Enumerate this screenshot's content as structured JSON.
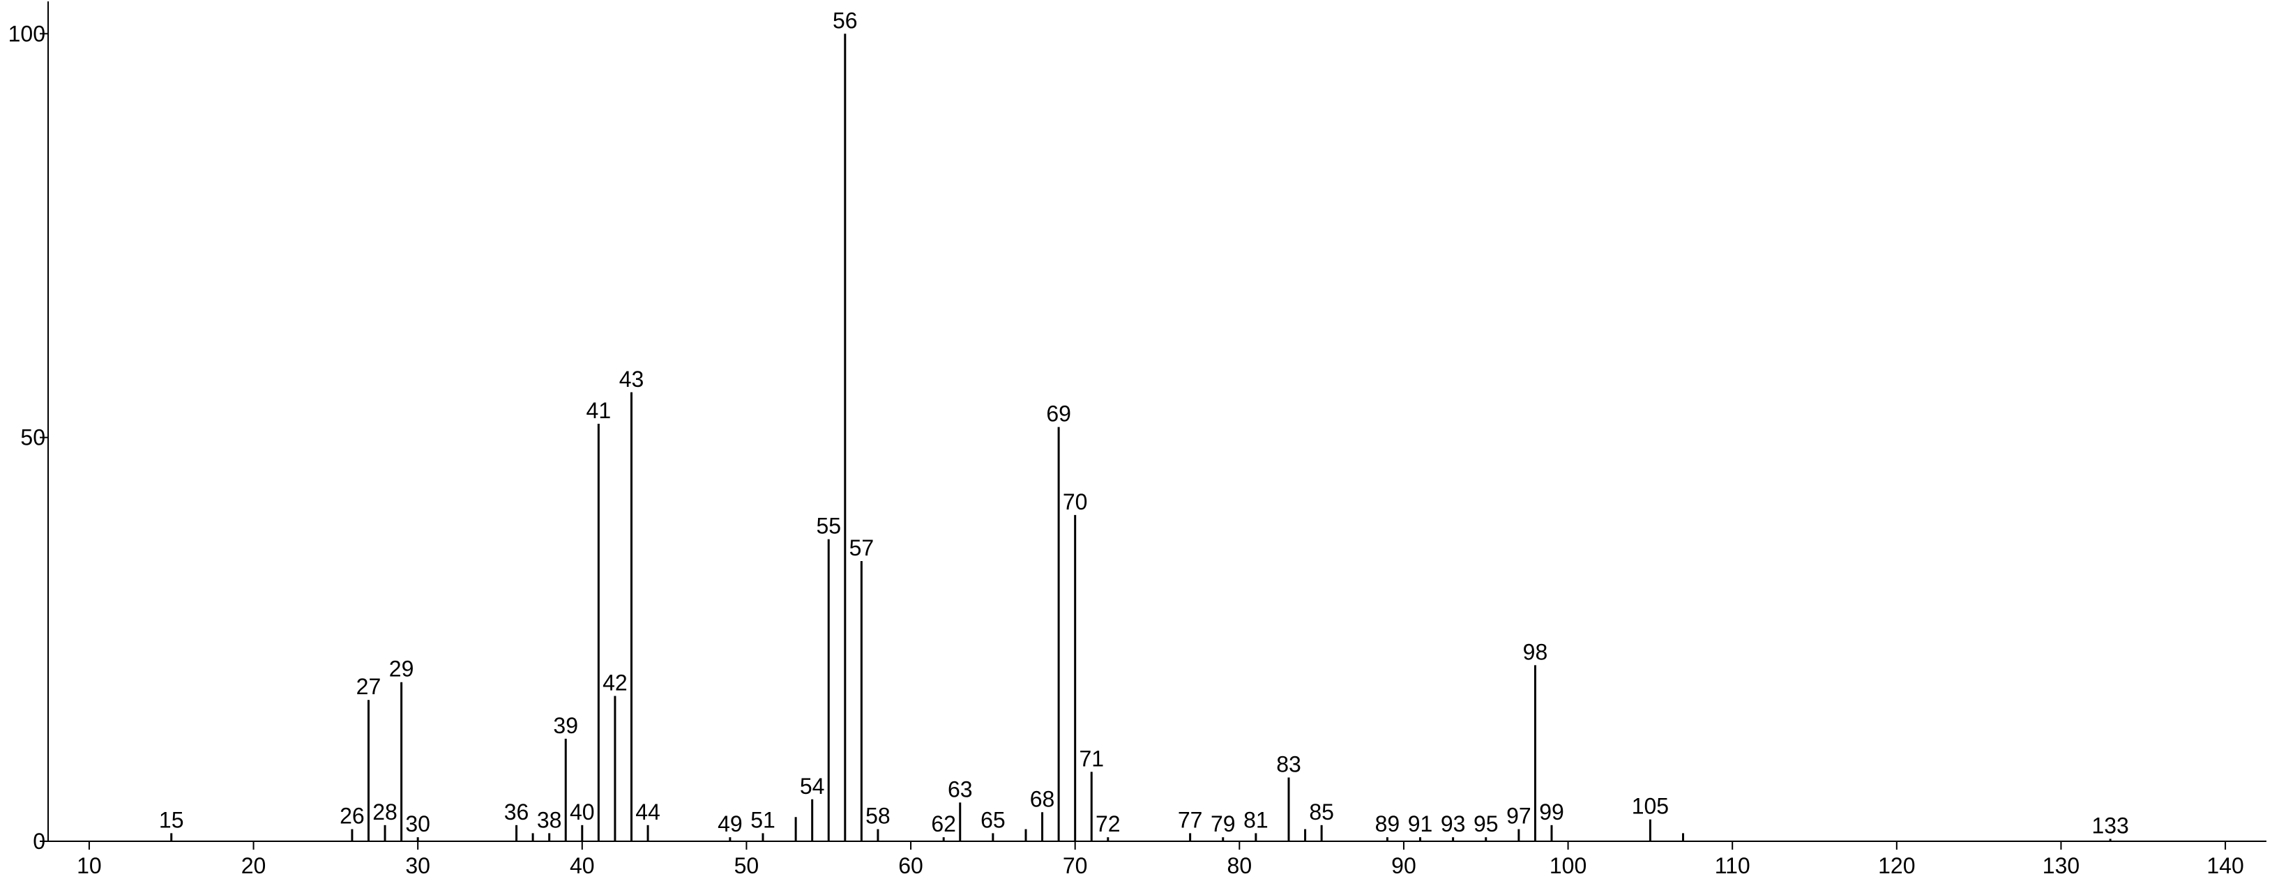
{
  "chart_data": {
    "type": "stem",
    "x": [
      15,
      26,
      27,
      28,
      29,
      30,
      36,
      37,
      38,
      39,
      40,
      41,
      42,
      43,
      44,
      49,
      51,
      53,
      54,
      55,
      56,
      57,
      58,
      62,
      63,
      65,
      67,
      68,
      69,
      70,
      71,
      72,
      77,
      79,
      81,
      83,
      84,
      85,
      89,
      91,
      93,
      95,
      97,
      98,
      99,
      105,
      107,
      133
    ],
    "values": [
      1,
      1.5,
      17.5,
      2,
      19.7,
      0.5,
      2,
      1,
      1,
      12.7,
      2,
      51.7,
      18,
      55.6,
      2,
      0.5,
      1,
      3,
      5.2,
      37.4,
      100,
      34.7,
      1.5,
      0.5,
      4.8,
      1,
      1.5,
      3.6,
      51.3,
      40.4,
      8.6,
      0.5,
      1,
      0.5,
      1,
      7.9,
      1.5,
      2,
      0.5,
      0.5,
      0.5,
      0.5,
      1.5,
      21.8,
      2,
      2.7,
      1,
      0.3
    ],
    "peak_labels": [
      "15",
      "26",
      "27",
      "28",
      "29",
      "30",
      "36",
      null,
      "38",
      "39",
      "40",
      "41",
      "42",
      "43",
      "44",
      "49",
      "51",
      null,
      "54",
      "55",
      "56",
      "57",
      "58",
      "62",
      "63",
      "65",
      null,
      "68",
      "69",
      "70",
      "71",
      "72",
      "77",
      "79",
      "81",
      "83",
      null,
      "85",
      "89",
      "91",
      "93",
      "95",
      "97",
      "98",
      "99",
      "105",
      null,
      "133"
    ],
    "color": "#000000",
    "xlim": [
      7.5,
      142.5
    ],
    "xticks": [
      10,
      20,
      30,
      40,
      50,
      60,
      70,
      80,
      90,
      100,
      110,
      120,
      130,
      140
    ],
    "ylim": [
      0,
      104
    ],
    "yticks": [
      0,
      50,
      100
    ]
  }
}
